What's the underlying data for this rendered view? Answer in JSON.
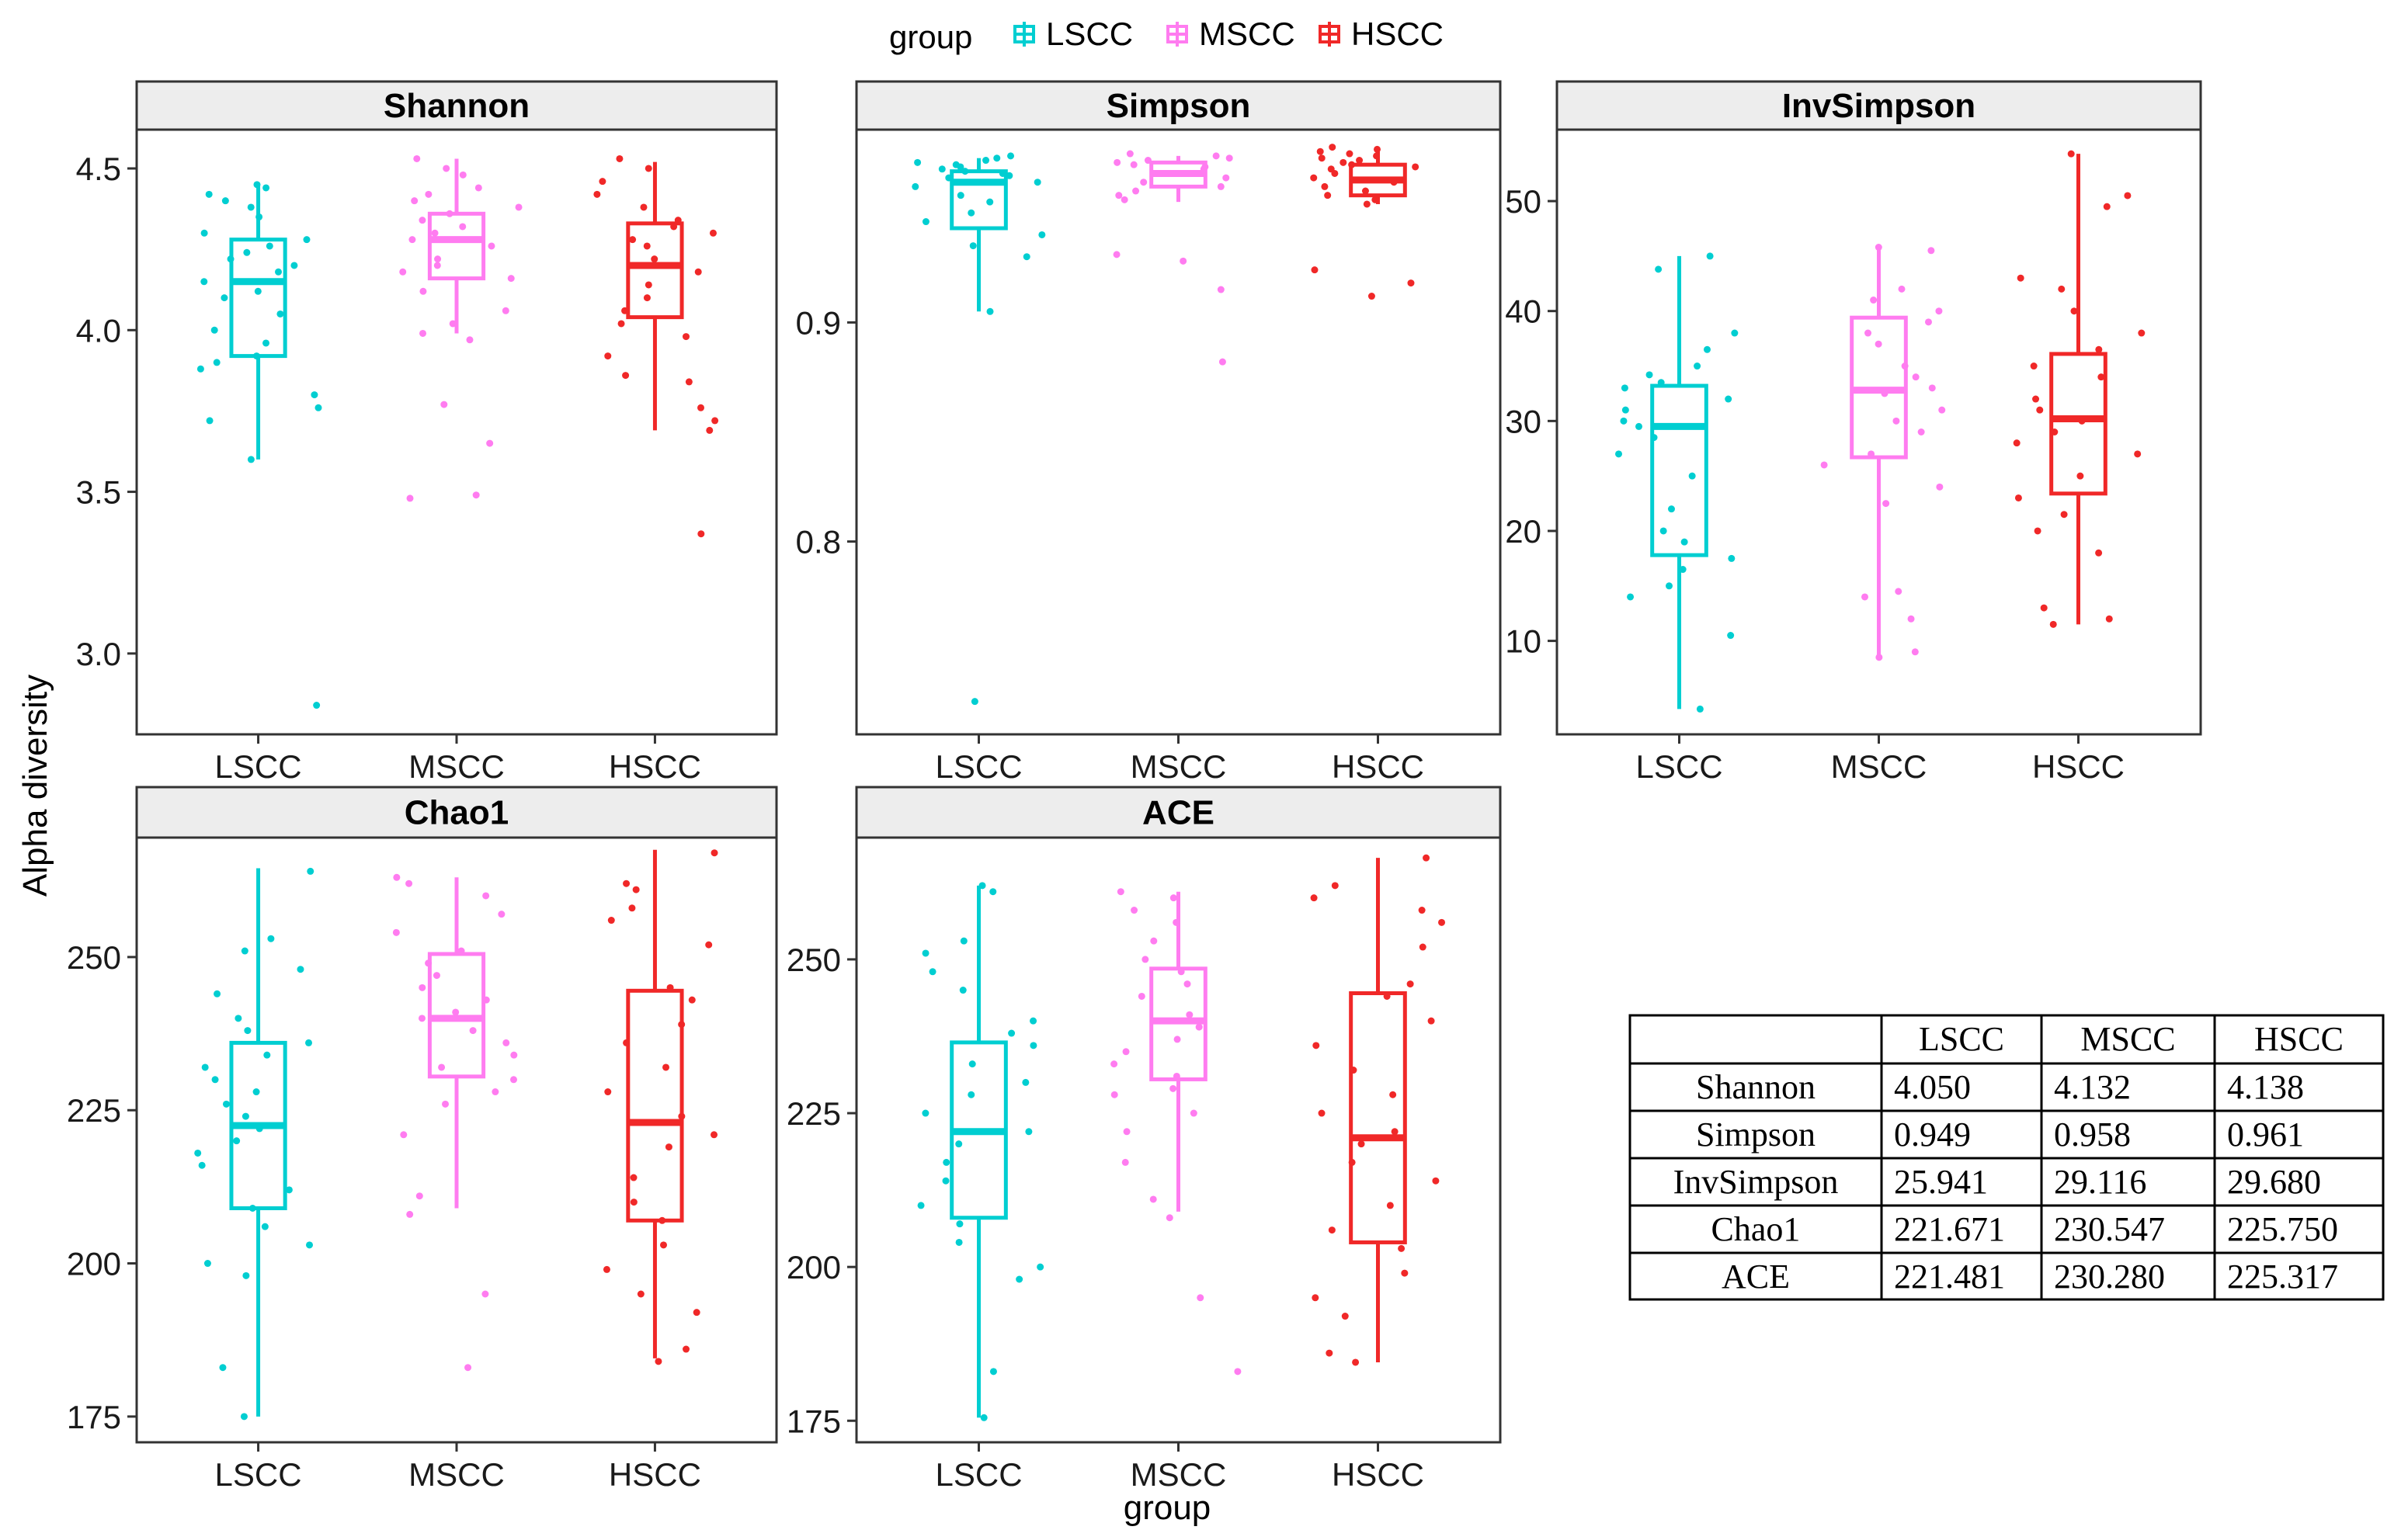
{
  "legend": {
    "title": "group",
    "items": [
      {
        "label": "LSCC",
        "color": "#00CED1"
      },
      {
        "label": "MSCC",
        "color": "#FF7CF0"
      },
      {
        "label": "HSCC",
        "color": "#F02828"
      }
    ]
  },
  "chart_data": [
    {
      "type": "box",
      "title": "Shannon",
      "categories": [
        "LSCC",
        "MSCC",
        "HSCC"
      ],
      "ylim": [
        2.75,
        4.62
      ],
      "yticks": [
        3.0,
        3.5,
        4.0,
        4.5
      ],
      "ytick_labels": [
        "3.0",
        "3.5",
        "4.0",
        "4.5"
      ],
      "boxes": [
        {
          "group": "LSCC",
          "whisker_low": 3.6,
          "q1": 3.92,
          "median": 4.15,
          "q3": 4.28,
          "whisker_high": 4.45
        },
        {
          "group": "MSCC",
          "whisker_low": 3.99,
          "q1": 4.16,
          "median": 4.28,
          "q3": 4.36,
          "whisker_high": 4.53
        },
        {
          "group": "HSCC",
          "whisker_low": 3.69,
          "q1": 4.04,
          "median": 4.2,
          "q3": 4.33,
          "whisker_high": 4.52
        }
      ],
      "points": [
        [
          4.45,
          4.44,
          4.42,
          4.4,
          4.38,
          4.35,
          4.3,
          4.28,
          4.26,
          4.24,
          4.22,
          4.2,
          4.18,
          4.15,
          4.12,
          4.1,
          4.05,
          4.0,
          3.96,
          3.92,
          3.9,
          3.88,
          3.8,
          3.76,
          3.72,
          3.6,
          2.84
        ],
        [
          4.53,
          4.5,
          4.48,
          4.44,
          4.42,
          4.4,
          4.38,
          4.36,
          4.34,
          4.32,
          4.3,
          4.28,
          4.26,
          4.22,
          4.2,
          4.18,
          4.16,
          4.12,
          4.06,
          4.02,
          3.99,
          3.97,
          3.77,
          3.65,
          3.49,
          3.48
        ],
        [
          4.53,
          4.5,
          4.46,
          4.42,
          4.38,
          4.34,
          4.32,
          4.3,
          4.28,
          4.26,
          4.22,
          4.2,
          4.18,
          4.14,
          4.1,
          4.06,
          4.02,
          3.98,
          3.92,
          3.86,
          3.84,
          3.76,
          3.72,
          3.69,
          3.37
        ]
      ]
    },
    {
      "type": "box",
      "title": "Simpson",
      "categories": [
        "LSCC",
        "MSCC",
        "HSCC"
      ],
      "ylim": [
        0.712,
        0.988
      ],
      "yticks": [
        0.8,
        0.9
      ],
      "ytick_labels": [
        "0.8",
        "0.9"
      ],
      "boxes": [
        {
          "group": "LSCC",
          "whisker_low": 0.905,
          "q1": 0.943,
          "median": 0.964,
          "q3": 0.969,
          "whisker_high": 0.975
        },
        {
          "group": "MSCC",
          "whisker_low": 0.955,
          "q1": 0.962,
          "median": 0.968,
          "q3": 0.973,
          "whisker_high": 0.976
        },
        {
          "group": "HSCC",
          "whisker_low": 0.954,
          "q1": 0.958,
          "median": 0.965,
          "q3": 0.972,
          "whisker_high": 0.979
        }
      ],
      "points": [
        [
          0.976,
          0.975,
          0.974,
          0.973,
          0.972,
          0.971,
          0.97,
          0.969,
          0.968,
          0.967,
          0.966,
          0.964,
          0.962,
          0.958,
          0.955,
          0.95,
          0.946,
          0.94,
          0.935,
          0.93,
          0.905,
          0.727
        ],
        [
          0.977,
          0.976,
          0.975,
          0.974,
          0.973,
          0.972,
          0.971,
          0.97,
          0.968,
          0.966,
          0.964,
          0.962,
          0.96,
          0.958,
          0.956,
          0.931,
          0.928,
          0.915,
          0.882
        ],
        [
          0.98,
          0.979,
          0.978,
          0.977,
          0.976,
          0.975,
          0.974,
          0.973,
          0.972,
          0.971,
          0.97,
          0.968,
          0.966,
          0.964,
          0.962,
          0.96,
          0.958,
          0.956,
          0.954,
          0.924,
          0.918,
          0.912
        ]
      ]
    },
    {
      "type": "box",
      "title": "InvSimpson",
      "categories": [
        "LSCC",
        "MSCC",
        "HSCC"
      ],
      "ylim": [
        1.5,
        56.5
      ],
      "yticks": [
        10,
        20,
        30,
        40,
        50
      ],
      "ytick_labels": [
        "10",
        "20",
        "30",
        "40",
        "50"
      ],
      "boxes": [
        {
          "group": "LSCC",
          "whisker_low": 3.8,
          "q1": 17.8,
          "median": 29.5,
          "q3": 33.2,
          "whisker_high": 45.0
        },
        {
          "group": "MSCC",
          "whisker_low": 8.5,
          "q1": 26.7,
          "median": 32.8,
          "q3": 39.4,
          "whisker_high": 45.8
        },
        {
          "group": "HSCC",
          "whisker_low": 11.5,
          "q1": 23.4,
          "median": 30.2,
          "q3": 36.1,
          "whisker_high": 54.3
        }
      ],
      "points": [
        [
          45.0,
          43.8,
          38.0,
          36.5,
          35.0,
          34.2,
          33.5,
          33.0,
          32.0,
          31.0,
          30.0,
          29.5,
          28.5,
          27.0,
          25.0,
          22.0,
          20.0,
          19.0,
          17.5,
          16.5,
          15.0,
          14.0,
          10.5,
          3.8
        ],
        [
          45.8,
          45.5,
          42.0,
          41.0,
          40.0,
          39.0,
          38.0,
          37.0,
          35.0,
          34.0,
          33.0,
          32.5,
          31.0,
          30.0,
          29.0,
          27.0,
          26.0,
          24.0,
          22.5,
          14.5,
          14.0,
          12.0,
          9.0,
          8.5
        ],
        [
          54.3,
          50.5,
          49.5,
          43.0,
          42.0,
          40.0,
          38.0,
          36.5,
          35.0,
          34.0,
          32.0,
          31.0,
          30.0,
          29.0,
          28.0,
          27.0,
          25.0,
          23.0,
          21.5,
          20.0,
          18.0,
          13.0,
          12.0,
          11.5
        ]
      ]
    },
    {
      "type": "box",
      "title": "Chao1",
      "categories": [
        "LSCC",
        "MSCC",
        "HSCC"
      ],
      "ylim": [
        170.8,
        269.5
      ],
      "yticks": [
        175,
        200,
        225,
        250
      ],
      "ytick_labels": [
        "175",
        "200",
        "225",
        "250"
      ],
      "boxes": [
        {
          "group": "LSCC",
          "whisker_low": 175.0,
          "q1": 209.0,
          "median": 222.5,
          "q3": 236.0,
          "whisker_high": 264.5
        },
        {
          "group": "MSCC",
          "whisker_low": 209.0,
          "q1": 230.5,
          "median": 240.0,
          "q3": 250.5,
          "whisker_high": 263.0
        },
        {
          "group": "HSCC",
          "whisker_low": 184.5,
          "q1": 207.0,
          "median": 223.0,
          "q3": 244.5,
          "whisker_high": 267.5
        }
      ],
      "points": [
        [
          264.0,
          253.0,
          251.0,
          248.0,
          244.0,
          240.0,
          238.0,
          236.0,
          234.0,
          232.0,
          230.0,
          228.0,
          226.0,
          224.0,
          222.0,
          220.0,
          218.0,
          216.0,
          212.0,
          209.0,
          206.0,
          203.0,
          200.0,
          198.0,
          183.0,
          175.0
        ],
        [
          263.0,
          262.0,
          260.0,
          257.0,
          254.0,
          251.0,
          249.0,
          247.0,
          245.0,
          243.0,
          241.0,
          240.0,
          238.0,
          236.0,
          234.0,
          232.0,
          230.0,
          228.0,
          226.0,
          221.0,
          211.0,
          208.0,
          195.0,
          183.0
        ],
        [
          267.0,
          262.0,
          261.0,
          258.0,
          256.0,
          252.0,
          245.0,
          243.0,
          239.0,
          236.0,
          232.0,
          228.0,
          224.0,
          221.0,
          219.0,
          214.0,
          210.0,
          207.0,
          203.0,
          199.0,
          195.0,
          192.0,
          186.0,
          184.0
        ]
      ]
    },
    {
      "type": "box",
      "title": "ACE",
      "categories": [
        "LSCC",
        "MSCC",
        "HSCC"
      ],
      "ylim": [
        171.5,
        269.8
      ],
      "yticks": [
        175,
        200,
        225,
        250
      ],
      "ytick_labels": [
        "175",
        "200",
        "225",
        "250"
      ],
      "boxes": [
        {
          "group": "LSCC",
          "whisker_low": 175.5,
          "q1": 208.0,
          "median": 222.0,
          "q3": 236.5,
          "whisker_high": 262.0
        },
        {
          "group": "MSCC",
          "whisker_low": 209.0,
          "q1": 230.5,
          "median": 240.0,
          "q3": 248.5,
          "whisker_high": 261.0
        },
        {
          "group": "HSCC",
          "whisker_low": 184.5,
          "q1": 204.0,
          "median": 221.0,
          "q3": 244.5,
          "whisker_high": 266.5
        }
      ],
      "points": [
        [
          262.0,
          261.0,
          253.0,
          251.0,
          248.0,
          245.0,
          240.0,
          238.0,
          236.0,
          233.0,
          230.0,
          228.0,
          225.0,
          222.0,
          220.0,
          217.0,
          214.0,
          210.0,
          207.0,
          204.0,
          200.0,
          198.0,
          183.0,
          175.5
        ],
        [
          261.0,
          260.0,
          258.0,
          256.0,
          253.0,
          250.0,
          248.0,
          246.0,
          244.0,
          241.0,
          239.0,
          237.0,
          235.0,
          233.0,
          231.0,
          229.0,
          228.0,
          225.0,
          222.0,
          217.0,
          211.0,
          208.0,
          195.0,
          183.0
        ],
        [
          266.5,
          262.0,
          260.0,
          258.0,
          256.0,
          252.0,
          246.0,
          244.0,
          240.0,
          236.0,
          232.0,
          228.0,
          225.0,
          222.0,
          220.0,
          217.0,
          214.0,
          210.0,
          206.0,
          203.0,
          199.0,
          195.0,
          192.0,
          186.0,
          184.5
        ]
      ]
    }
  ],
  "axes": {
    "ylabel": "Alpha diversity",
    "xlabel": "group"
  },
  "table": {
    "headers": [
      "",
      "LSCC",
      "MSCC",
      "HSCC"
    ],
    "rows": [
      [
        "Shannon",
        "4.050",
        "4.132",
        "4.138"
      ],
      [
        "Simpson",
        "0.949",
        "0.958",
        "0.961"
      ],
      [
        "InvSimpson",
        "25.941",
        "29.116",
        "29.680"
      ],
      [
        "Chao1",
        "221.671",
        "230.547",
        "225.750"
      ],
      [
        "ACE",
        "221.481",
        "230.280",
        "225.317"
      ]
    ]
  }
}
